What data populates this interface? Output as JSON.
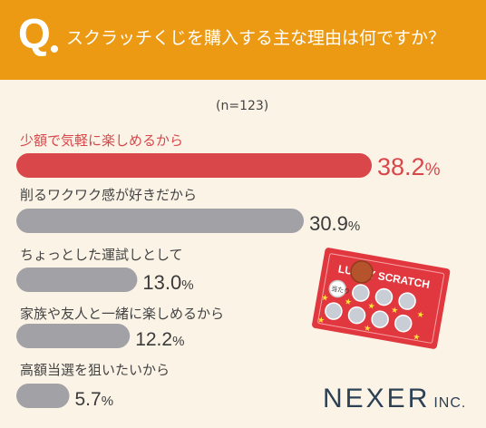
{
  "header": {
    "q_mark": "Q",
    "question": "スクラッチくじを購入する主な理由は何ですか？"
  },
  "sample_note": "(n=123)",
  "chart_data": {
    "type": "bar",
    "orientation": "horizontal",
    "categories": [
      "少額で気軽に楽しめるから",
      "削るワクワク感が好きだから",
      "ちょっとした運試しとして",
      "家族や友人と一緒に楽しめるから",
      "高額当選を狙いたいから"
    ],
    "values": [
      38.2,
      30.9,
      13.0,
      12.2,
      5.7
    ],
    "value_labels": [
      "38.2",
      "30.9",
      "13.0",
      "12.2",
      "5.7"
    ],
    "unit": "%",
    "highlight_color": "#d9474b",
    "bar_color": "#a2a2a6"
  },
  "illustration": {
    "ticket_text": "LUCKY SCRATCH",
    "stamp_text": "当たり"
  },
  "brand": {
    "name": "NEXER",
    "suffix": "INC."
  }
}
